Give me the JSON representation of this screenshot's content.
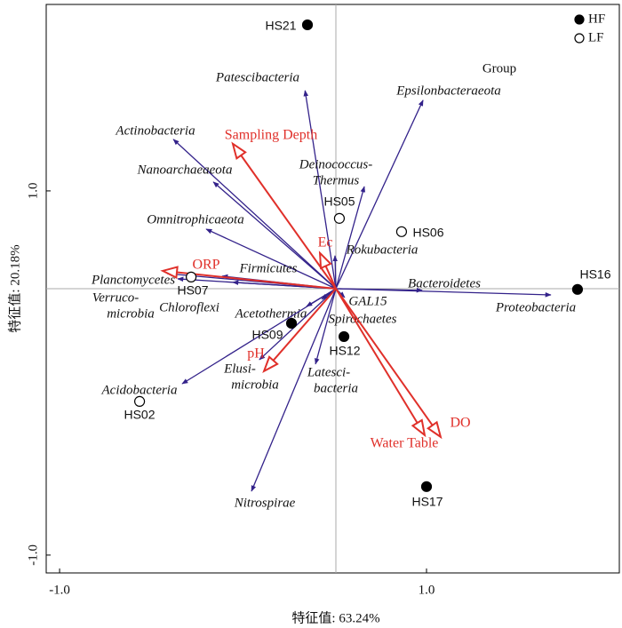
{
  "chart_data": {
    "type": "biplot",
    "x_label": "特征值: 63.24%",
    "y_label": "特征值: 20.18%",
    "xlim": [
      -1.073,
      2.051
    ],
    "ylim": [
      -1.098,
      2.024
    ],
    "xticks": [
      {
        "value": -1.0,
        "label": "-1.0"
      },
      {
        "value": 1.0,
        "label": "1.0"
      }
    ],
    "yticks": [
      {
        "value": -1.0,
        "label": "-1.0"
      },
      {
        "value": 1.0,
        "label": "1.0"
      }
    ],
    "origin": [
      0.506,
      0.463
    ],
    "species_color": "#33228a",
    "env_color": "#e0302a",
    "species": [
      {
        "label": [
          "Patescibacteria"
        ],
        "x": 0.338,
        "y": 1.551
      },
      {
        "label": [
          "Epsilonbacteraeota"
        ],
        "x": 0.981,
        "y": 1.498
      },
      {
        "label": [
          "Actinobacteria"
        ],
        "x": -0.38,
        "y": 1.283
      },
      {
        "label": [
          "Nanoarchaeaeota"
        ],
        "x": -0.162,
        "y": 1.049
      },
      {
        "label": [
          "Deinococcus-",
          "Thermus"
        ],
        "x": 0.661,
        "y": 1.024
      },
      {
        "label": [
          "Omnitrophicaeota"
        ],
        "x": -0.201,
        "y": 0.79
      },
      {
        "label": [
          "Rokubacteria"
        ],
        "x": 0.501,
        "y": 0.644
      },
      {
        "label": [
          "Firmicutes"
        ],
        "x": -0.114,
        "y": 0.532
      },
      {
        "label": [
          "Planctomycetes"
        ],
        "x": -0.414,
        "y": 0.546
      },
      {
        "label": [
          "Verruco-",
          "microbia"
        ],
        "x": -0.356,
        "y": 0.517
      },
      {
        "label": [
          "Chloroflexi"
        ],
        "x": -0.056,
        "y": 0.498
      },
      {
        "label": [
          "Acetothermia"
        ],
        "x": 0.346,
        "y": 0.366
      },
      {
        "label": [
          "GAL15"
        ],
        "x": 0.554,
        "y": 0.415
      },
      {
        "label": [
          "Spirochaetes"
        ],
        "x": 0.429,
        "y": 0.405
      },
      {
        "label": [
          "Bacteroidetes"
        ],
        "x": 0.976,
        "y": 0.454
      },
      {
        "label": [
          "Proteobacteria"
        ],
        "x": 1.678,
        "y": 0.429
      },
      {
        "label": [
          "Elusi-",
          "microbia"
        ],
        "x": 0.089,
        "y": 0.073
      },
      {
        "label": [
          "Latesci-",
          "bacteria"
        ],
        "x": 0.395,
        "y": 0.049
      },
      {
        "label": [
          "Acidobacteria"
        ],
        "x": -0.332,
        "y": -0.059
      },
      {
        "label": [
          "Nitrospirae"
        ],
        "x": 0.046,
        "y": -0.649
      }
    ],
    "env": [
      {
        "label": "Sampling Depth",
        "x": -0.056,
        "y": 1.259
      },
      {
        "label": "Ec",
        "x": 0.419,
        "y": 0.659
      },
      {
        "label": "ORP",
        "x": -0.438,
        "y": 0.561
      },
      {
        "label": "pH",
        "x": 0.114,
        "y": 0.01
      },
      {
        "label": "Water Table",
        "x": 0.99,
        "y": -0.341
      },
      {
        "label": "DO",
        "x": 1.077,
        "y": -0.351
      }
    ],
    "legend_title": "Group",
    "groups": [
      {
        "name": "HF",
        "filled": true
      },
      {
        "name": "LF",
        "filled": false
      }
    ],
    "samples": [
      {
        "label": "HS21",
        "group": "HF",
        "x": 0.351,
        "y": 1.912
      },
      {
        "label": "HS05",
        "group": "LF",
        "x": 0.525,
        "y": 0.849
      },
      {
        "label": "HS06",
        "group": "LF",
        "x": 0.864,
        "y": 0.776
      },
      {
        "label": "HS16",
        "group": "HF",
        "x": 1.823,
        "y": 0.459
      },
      {
        "label": "HS07",
        "group": "LF",
        "x": -0.283,
        "y": 0.527
      },
      {
        "label": "HS09",
        "group": "HF",
        "x": 0.264,
        "y": 0.273
      },
      {
        "label": "HS12",
        "group": "HF",
        "x": 0.55,
        "y": 0.2
      },
      {
        "label": "HS02",
        "group": "LF",
        "x": -0.564,
        "y": -0.156
      },
      {
        "label": "HS17",
        "group": "HF",
        "x": 1.0,
        "y": -0.624
      }
    ]
  }
}
